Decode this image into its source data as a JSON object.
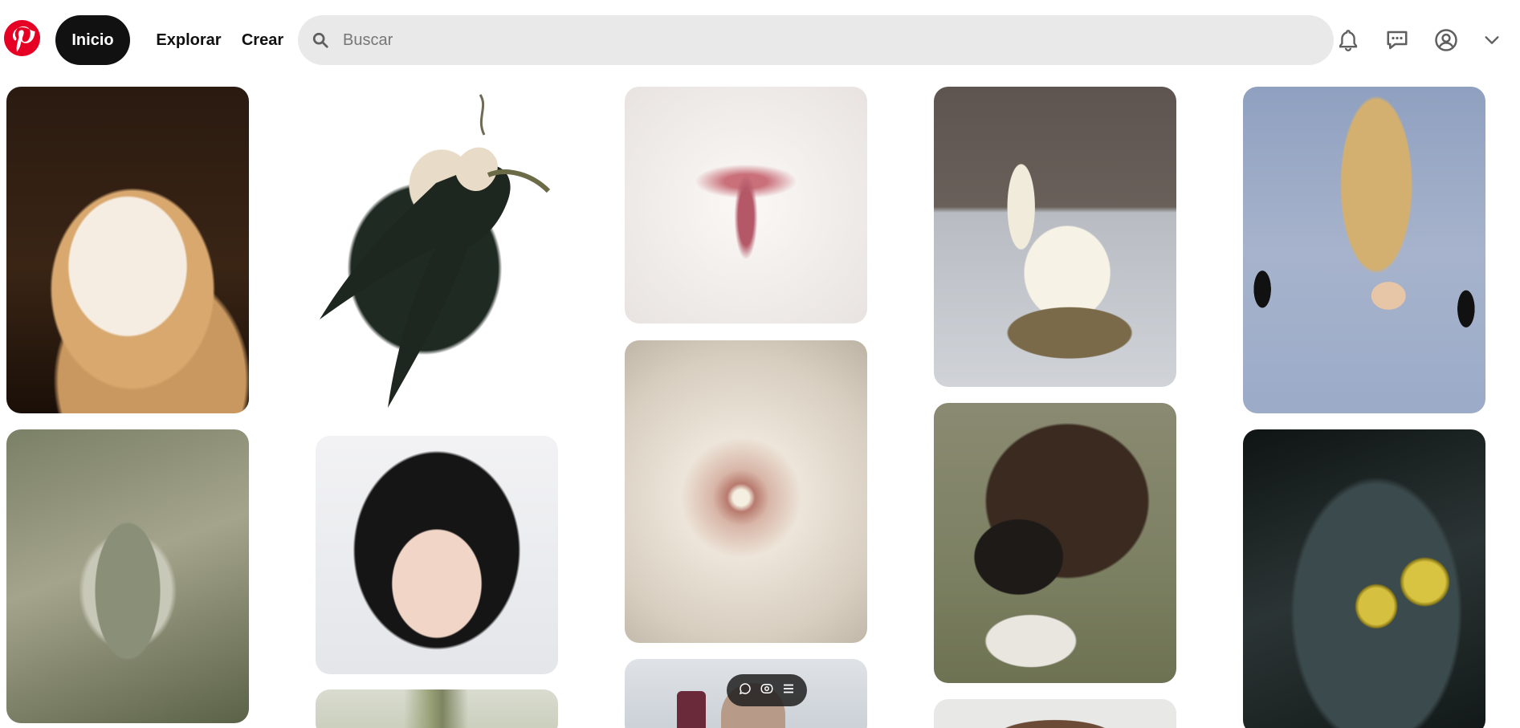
{
  "header": {
    "logo_name": "pinterest-logo",
    "nav": {
      "home_label": "Inicio",
      "explore_label": "Explorar",
      "create_label": "Crear"
    },
    "search": {
      "placeholder": "Buscar",
      "value": ""
    },
    "icons": [
      "search-icon",
      "bell-icon",
      "chat-icon",
      "profile-icon",
      "chevron-down-icon"
    ]
  },
  "colors": {
    "brand": "#e60023",
    "active_pill": "#111111",
    "search_bg": "#e9e9e9"
  },
  "pins": [
    {
      "column": 1,
      "subject": "barn-owl"
    },
    {
      "column": 1,
      "subject": "buddha-sculpture"
    },
    {
      "column": 2,
      "subject": "swallow-illustration"
    },
    {
      "column": 2,
      "subject": "girl-with-gem-makeup"
    },
    {
      "column": 2,
      "subject": "pear-branch"
    },
    {
      "column": 3,
      "subject": "rabbit-nose"
    },
    {
      "column": 3,
      "subject": "white-flower"
    },
    {
      "column": 3,
      "subject": "monkey-with-phone"
    },
    {
      "column": 4,
      "subject": "cream-swan-dessert"
    },
    {
      "column": 4,
      "subject": "man-with-bison"
    },
    {
      "column": 4,
      "subject": "ram-horns"
    },
    {
      "column": 5,
      "subject": "woman-with-black-cats"
    },
    {
      "column": 5,
      "subject": "olives-in-martini"
    }
  ],
  "pin_hover_actions": [
    "comment-icon",
    "visual-search-icon",
    "menu-icon"
  ]
}
